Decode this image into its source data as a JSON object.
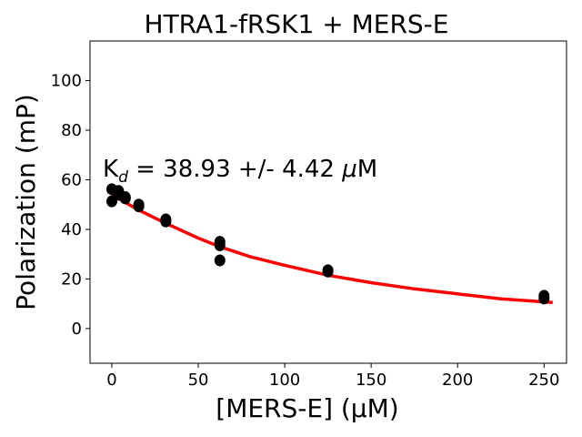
{
  "chart_data": {
    "type": "scatter",
    "title": "HTRA1-fRSK1 + MERS-E",
    "xlabel": "[MERS-E] (µM)",
    "ylabel": "Polarization (mP)",
    "xlim": [
      -12.6,
      263
    ],
    "ylim": [
      -14,
      116
    ],
    "xticks": [
      0,
      50,
      100,
      150,
      200,
      250
    ],
    "yticks": [
      0,
      20,
      40,
      60,
      80,
      100
    ],
    "annotation": {
      "prefix": "K",
      "sub": "d",
      "text": " = 38.93 +/- 4.42 ",
      "unit_mu": "μ",
      "unit": "M"
    },
    "grid": false,
    "points": {
      "x": [
        0,
        0,
        3.9,
        3.9,
        7.8,
        7.8,
        15.6,
        15.6,
        31.25,
        31.25,
        62.5,
        62.5,
        62.5,
        125,
        125,
        250,
        250
      ],
      "y": [
        56.2,
        51.3,
        55.5,
        54,
        53,
        52.5,
        50,
        49.3,
        44,
        43.2,
        35,
        33.6,
        27.5,
        23.5,
        23,
        13.2,
        12.1
      ],
      "color": "#000000"
    },
    "fit": {
      "x": [
        0,
        15,
        31,
        50,
        62.5,
        80,
        100,
        125,
        150,
        175,
        200,
        225,
        255
      ],
      "y": [
        54,
        48,
        42.5,
        36.5,
        33,
        29,
        25.5,
        21.5,
        18.5,
        16,
        14,
        12,
        10.5
      ],
      "color": "#ff0000"
    }
  }
}
